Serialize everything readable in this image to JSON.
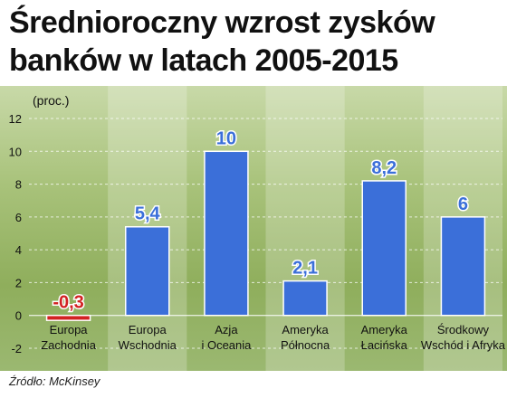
{
  "title": {
    "line1": "Średnioroczny wzrost zysków",
    "line2": "banków w latach 2005-2015"
  },
  "source": "Źródło: McKinsey",
  "colors": {
    "bar": "#3b6fd9",
    "bar_stroke": "#ffffff",
    "negative_bar": "#d22222",
    "negative_label": "#d22222",
    "label_fill": "#3b6fd9",
    "axis_text": "#111111"
  },
  "chart_data": {
    "type": "bar",
    "ylabel": "(proc.)",
    "ylim": [
      -2,
      12
    ],
    "yticks": [
      "-2",
      "0",
      "2",
      "4",
      "6",
      "8",
      "10",
      "12"
    ],
    "grid": true,
    "categories": [
      [
        "Europa",
        "Zachodnia"
      ],
      [
        "Europa",
        "Wschodnia"
      ],
      [
        "Azja",
        "i Oceania"
      ],
      [
        "Ameryka",
        "Północna"
      ],
      [
        "Ameryka",
        "Łacińska"
      ],
      [
        "Środkowy",
        "Wschód i Afryka"
      ]
    ],
    "values": [
      -0.3,
      5.4,
      10,
      2.1,
      8.2,
      6
    ],
    "value_labels": [
      "-0,3",
      "5,4",
      "10",
      "2,1",
      "8,2",
      "6"
    ]
  }
}
